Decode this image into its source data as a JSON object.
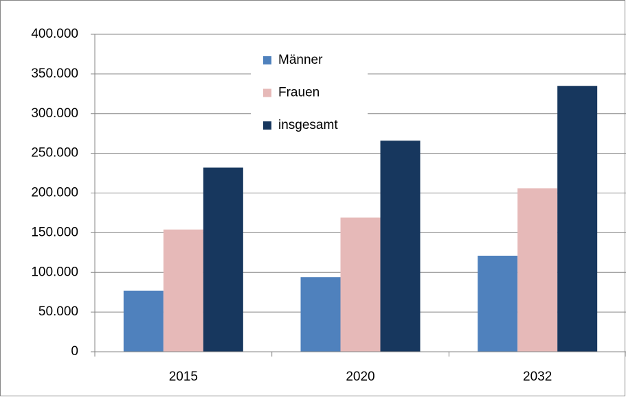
{
  "chart_data": {
    "type": "bar",
    "categories": [
      "2015",
      "2020",
      "2032"
    ],
    "series": [
      {
        "name": "Männer",
        "color": "#4f81bd",
        "values": [
          77000,
          94000,
          121000
        ]
      },
      {
        "name": "Frauen",
        "color": "#e6b9b8",
        "values": [
          154000,
          169000,
          206000
        ]
      },
      {
        "name": "insgesamt",
        "color": "#17375e",
        "values": [
          232000,
          266000,
          335000
        ]
      }
    ],
    "ylim": [
      0,
      400000
    ],
    "yticks": [
      0,
      {
        "value": 50000,
        "label": "50.000"
      },
      {
        "value": 100000,
        "label": "100.000"
      },
      {
        "value": 150000,
        "label": "150.000"
      },
      {
        "value": 200000,
        "label": "200.000"
      },
      {
        "value": 250000,
        "label": "250.000"
      },
      {
        "value": 300000,
        "label": "300.000"
      },
      {
        "value": 350000,
        "label": "350.000"
      },
      {
        "value": 400000,
        "label": "400.000"
      }
    ],
    "grid": true,
    "legend": "top"
  }
}
